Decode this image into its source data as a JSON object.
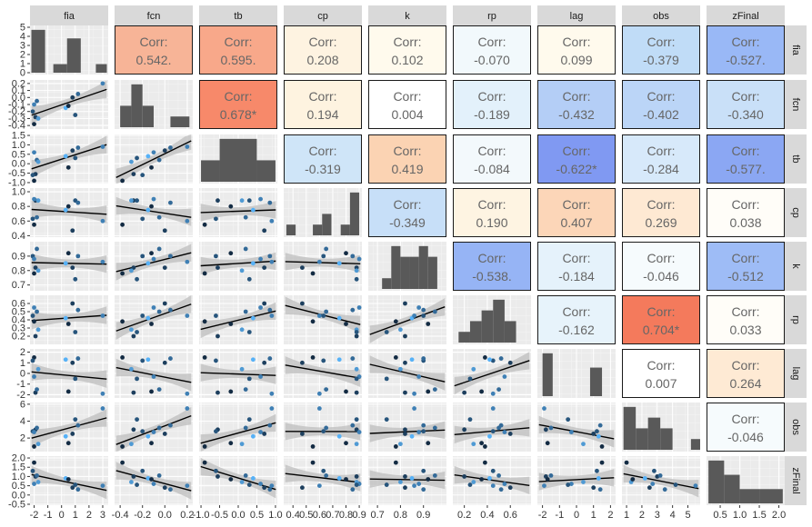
{
  "chart_data": {
    "type": "scatter",
    "kind": "pairs-matrix",
    "variables": [
      "fia",
      "fcn",
      "tb",
      "cp",
      "k",
      "rp",
      "lag",
      "obs",
      "zFinal"
    ],
    "corr_heading": "Corr:",
    "axes": {
      "fia": {
        "range": [
          -2.3,
          3.4
        ],
        "ticks": [
          "-2",
          "-1",
          "0",
          "1",
          "2",
          "3"
        ],
        "tick_values": [
          -2,
          -1,
          0,
          1,
          2,
          3
        ]
      },
      "fcn": {
        "range": [
          -0.45,
          0.25
        ],
        "ticks": [
          "-0.4",
          "-0.2",
          "0.0",
          "0.2"
        ],
        "tick_values": [
          -0.4,
          -0.2,
          0.0,
          0.2
        ]
      },
      "tb": {
        "range": [
          -1.05,
          1.05
        ],
        "ticks": [
          "-1.0",
          "-0.5",
          "0.0",
          "0.5",
          "1.0"
        ],
        "tick_values": [
          -1.0,
          -0.5,
          0.0,
          0.5,
          1.0
        ]
      },
      "cp": {
        "range": [
          0.33,
          0.92
        ],
        "ticks": [
          "0.4",
          "0.5",
          "0.6",
          "0.7",
          "0.8",
          "0.9"
        ],
        "tick_values": [
          0.4,
          0.5,
          0.6,
          0.7,
          0.8,
          0.9
        ]
      },
      "k": {
        "range": [
          0.66,
          1.0
        ],
        "ticks": [
          "0.7",
          "0.8",
          "0.9"
        ],
        "tick_values": [
          0.7,
          0.8,
          0.9
        ]
      },
      "rp": {
        "range": [
          0.1,
          0.78
        ],
        "ticks": [
          "0.2",
          "0.4",
          "0.6"
        ],
        "tick_values": [
          0.2,
          0.4,
          0.6
        ]
      },
      "lag": {
        "range": [
          -2.3,
          2.3
        ],
        "ticks": [
          "-2",
          "-1",
          "0",
          "1",
          "2"
        ],
        "tick_values": [
          -2,
          -1,
          0,
          1,
          2
        ]
      },
      "obs": {
        "range": [
          0.7,
          5.8
        ],
        "ticks": [
          "1",
          "2",
          "3",
          "4",
          "5"
        ],
        "tick_values": [
          1,
          2,
          3,
          4,
          5
        ]
      },
      "zFinal": {
        "range": [
          0.15,
          2.15
        ],
        "ticks": [
          "0.5",
          "1.0",
          "1.5",
          "2.0"
        ],
        "tick_values": [
          0.5,
          1.0,
          1.5,
          2.0
        ]
      }
    },
    "row_axes": {
      "fia": {
        "range": [
          -0.2,
          5.2
        ],
        "ticks": [
          "0",
          "1",
          "2",
          "3",
          "4",
          "5"
        ],
        "tick_values": [
          0,
          1,
          2,
          3,
          4,
          5
        ]
      },
      "fcn": {
        "range": [
          -0.45,
          0.25
        ],
        "ticks": [
          "-0.4",
          "-0.3",
          "-0.2",
          "-0.1",
          "0.0",
          "0.1",
          "0.2"
        ],
        "tick_values": [
          -0.4,
          -0.3,
          -0.2,
          -0.1,
          0.0,
          0.1,
          0.2
        ]
      },
      "tb": {
        "range": [
          -1.05,
          1.55
        ],
        "ticks": [
          "-1.0",
          "-0.5",
          "0.0",
          "0.5",
          "1.0",
          "1.5"
        ],
        "tick_values": [
          -1.0,
          -0.5,
          0.0,
          0.5,
          1.0,
          1.5
        ]
      },
      "cp": {
        "range": [
          0.38,
          1.05
        ],
        "ticks": [
          "0.4",
          "0.6",
          "0.8",
          "1.0"
        ],
        "tick_values": [
          0.4,
          0.6,
          0.8,
          1.0
        ]
      },
      "k": {
        "range": [
          0.66,
          1.0
        ],
        "ticks": [
          "0.7",
          "0.8",
          "0.9"
        ],
        "tick_values": [
          0.7,
          0.8,
          0.9
        ]
      },
      "rp": {
        "range": [
          0.1,
          0.7
        ],
        "ticks": [
          "0.2",
          "0.3",
          "0.4",
          "0.5",
          "0.6"
        ],
        "tick_values": [
          0.2,
          0.3,
          0.4,
          0.5,
          0.6
        ]
      },
      "lag": {
        "range": [
          -2.3,
          2.3
        ],
        "ticks": [
          "-2",
          "-1",
          "0",
          "1",
          "2"
        ],
        "tick_values": [
          -2,
          -1,
          0,
          1,
          2
        ]
      },
      "obs": {
        "range": [
          0.4,
          6.2
        ],
        "ticks": [
          "2",
          "4",
          "6"
        ],
        "tick_values": [
          2,
          4,
          6
        ]
      },
      "zFinal": {
        "range": [
          -0.55,
          2.1
        ],
        "ticks": [
          "-0.5",
          "0.0",
          "0.5",
          "1.0",
          "1.5",
          "2.0"
        ],
        "tick_values": [
          -0.5,
          0.0,
          0.5,
          1.0,
          1.5,
          2.0
        ]
      }
    },
    "correlations": [
      {
        "row": "fia",
        "col": "fcn",
        "value": "0.542.",
        "fill": "#f7b497"
      },
      {
        "row": "fia",
        "col": "tb",
        "value": "0.595.",
        "fill": "#f8a88a"
      },
      {
        "row": "fia",
        "col": "cp",
        "value": "0.208",
        "fill": "#fef3e1"
      },
      {
        "row": "fia",
        "col": "k",
        "value": "0.102",
        "fill": "#fffaed"
      },
      {
        "row": "fia",
        "col": "rp",
        "value": "-0.070",
        "fill": "#f2f9fc"
      },
      {
        "row": "fia",
        "col": "lag",
        "value": "0.099",
        "fill": "#fffaed"
      },
      {
        "row": "fia",
        "col": "obs",
        "value": "-0.379",
        "fill": "#c0dcf7"
      },
      {
        "row": "fia",
        "col": "zFinal",
        "value": "-0.527.",
        "fill": "#99b8f6"
      },
      {
        "row": "fcn",
        "col": "tb",
        "value": "0.678*",
        "fill": "#f7896a"
      },
      {
        "row": "fcn",
        "col": "cp",
        "value": "0.194",
        "fill": "#fef3e0"
      },
      {
        "row": "fcn",
        "col": "k",
        "value": "0.004",
        "fill": "#ffffff"
      },
      {
        "row": "fcn",
        "col": "rp",
        "value": "-0.189",
        "fill": "#e3f1fb"
      },
      {
        "row": "fcn",
        "col": "lag",
        "value": "-0.432",
        "fill": "#b4cef6"
      },
      {
        "row": "fcn",
        "col": "obs",
        "value": "-0.402",
        "fill": "#bbd5f7"
      },
      {
        "row": "fcn",
        "col": "zFinal",
        "value": "-0.340",
        "fill": "#c9e0f8"
      },
      {
        "row": "tb",
        "col": "cp",
        "value": "-0.319",
        "fill": "#cfe5f8"
      },
      {
        "row": "tb",
        "col": "k",
        "value": "0.419",
        "fill": "#fbd3b3"
      },
      {
        "row": "tb",
        "col": "rp",
        "value": "-0.084",
        "fill": "#f3f9fc"
      },
      {
        "row": "tb",
        "col": "lag",
        "value": "-0.622*",
        "fill": "#8099f2"
      },
      {
        "row": "tb",
        "col": "obs",
        "value": "-0.284",
        "fill": "#d7e9fa"
      },
      {
        "row": "tb",
        "col": "zFinal",
        "value": "-0.577.",
        "fill": "#8ba7f3"
      },
      {
        "row": "cp",
        "col": "k",
        "value": "-0.349",
        "fill": "#c7dff8"
      },
      {
        "row": "cp",
        "col": "rp",
        "value": "0.190",
        "fill": "#fef4e2"
      },
      {
        "row": "cp",
        "col": "lag",
        "value": "0.407",
        "fill": "#fcd6b8"
      },
      {
        "row": "cp",
        "col": "obs",
        "value": "0.269",
        "fill": "#fee9d3"
      },
      {
        "row": "cp",
        "col": "zFinal",
        "value": "0.038",
        "fill": "#fffdf8"
      },
      {
        "row": "k",
        "col": "rp",
        "value": "-0.538.",
        "fill": "#96b4f5"
      },
      {
        "row": "k",
        "col": "lag",
        "value": "-0.184",
        "fill": "#e5f2fb"
      },
      {
        "row": "k",
        "col": "obs",
        "value": "-0.046",
        "fill": "#f6fbfd"
      },
      {
        "row": "k",
        "col": "zFinal",
        "value": "-0.512",
        "fill": "#9ebcf6"
      },
      {
        "row": "rp",
        "col": "lag",
        "value": "-0.162",
        "fill": "#e7f3fb"
      },
      {
        "row": "rp",
        "col": "obs",
        "value": "0.704*",
        "fill": "#f47a5c"
      },
      {
        "row": "rp",
        "col": "zFinal",
        "value": "0.033",
        "fill": "#fffdf8"
      },
      {
        "row": "lag",
        "col": "obs",
        "value": "0.007",
        "fill": "#ffffff"
      },
      {
        "row": "lag",
        "col": "zFinal",
        "value": "0.264",
        "fill": "#feead4"
      },
      {
        "row": "obs",
        "col": "zFinal",
        "value": "-0.046",
        "fill": "#f6fbfd"
      }
    ],
    "histograms": {
      "fia": [
        {
          "lo": -2.2,
          "hi": -1.2,
          "count": 5
        },
        {
          "lo": -0.6,
          "hi": 0.4,
          "count": 1
        },
        {
          "lo": 0.4,
          "hi": 1.4,
          "count": 4
        },
        {
          "lo": 2.5,
          "hi": 3.3,
          "count": 1
        }
      ],
      "fcn": [
        {
          "lo": -0.4,
          "hi": -0.3,
          "count": 2
        },
        {
          "lo": -0.3,
          "hi": -0.2,
          "count": 4
        },
        {
          "lo": -0.2,
          "hi": -0.1,
          "count": 2
        },
        {
          "lo": 0.05,
          "hi": 0.22,
          "count": 1
        }
      ],
      "tb": [
        {
          "lo": -1.0,
          "hi": -0.5,
          "count": 1
        },
        {
          "lo": -0.5,
          "hi": 0.5,
          "count": 2
        },
        {
          "lo": 0.5,
          "hi": 1.0,
          "count": 1
        }
      ],
      "cp": [
        {
          "lo": 0.35,
          "hi": 0.42,
          "count": 1
        },
        {
          "lo": 0.55,
          "hi": 0.62,
          "count": 1
        },
        {
          "lo": 0.62,
          "hi": 0.69,
          "count": 2
        },
        {
          "lo": 0.76,
          "hi": 0.83,
          "count": 1
        },
        {
          "lo": 0.83,
          "hi": 0.9,
          "count": 4
        }
      ],
      "k": [
        {
          "lo": 0.72,
          "hi": 0.76,
          "count": 1
        },
        {
          "lo": 0.76,
          "hi": 0.8,
          "count": 4
        },
        {
          "lo": 0.8,
          "hi": 0.84,
          "count": 3
        },
        {
          "lo": 0.84,
          "hi": 0.88,
          "count": 3
        },
        {
          "lo": 0.88,
          "hi": 0.92,
          "count": 4
        },
        {
          "lo": 0.92,
          "hi": 0.96,
          "count": 3
        }
      ],
      "rp": [
        {
          "lo": 0.15,
          "hi": 0.25,
          "count": 1
        },
        {
          "lo": 0.25,
          "hi": 0.35,
          "count": 2
        },
        {
          "lo": 0.35,
          "hi": 0.45,
          "count": 3
        },
        {
          "lo": 0.45,
          "hi": 0.55,
          "count": 4
        },
        {
          "lo": 0.55,
          "hi": 0.65,
          "count": 2
        }
      ],
      "lag": [
        {
          "lo": -2.0,
          "hi": -1.4,
          "count": 3
        },
        {
          "lo": 0.8,
          "hi": 1.5,
          "count": 2
        }
      ],
      "obs": [
        {
          "lo": 0.8,
          "hi": 1.6,
          "count": 4
        },
        {
          "lo": 1.6,
          "hi": 2.4,
          "count": 2
        },
        {
          "lo": 2.4,
          "hi": 3.2,
          "count": 3
        },
        {
          "lo": 3.2,
          "hi": 4.0,
          "count": 2
        },
        {
          "lo": 5.2,
          "hi": 5.8,
          "count": 1
        }
      ],
      "zFinal": [
        {
          "lo": 0.2,
          "hi": 0.6,
          "count": 3
        },
        {
          "lo": 0.6,
          "hi": 1.0,
          "count": 2
        },
        {
          "lo": 1.0,
          "hi": 1.5,
          "count": 1
        },
        {
          "lo": 1.5,
          "hi": 2.1,
          "count": 1
        }
      ]
    },
    "observations": [
      {
        "fia": -2.0,
        "fcn": -0.38,
        "tb": -0.9,
        "cp": 0.55,
        "k": 0.78,
        "rp": 0.38,
        "lag": 1.5,
        "obs": 1.0,
        "zFinal": 1.75
      },
      {
        "fia": -1.9,
        "fcn": -0.28,
        "tb": -0.55,
        "cp": 0.88,
        "k": 0.82,
        "rp": 0.2,
        "lag": -1.8,
        "obs": 3.0,
        "zFinal": 1.0
      },
      {
        "fia": -2.1,
        "fcn": -0.2,
        "tb": -0.6,
        "cp": 0.63,
        "k": 0.9,
        "rp": 0.45,
        "lag": 1.2,
        "obs": 2.8,
        "zFinal": 1.3
      },
      {
        "fia": -1.8,
        "fcn": -0.05,
        "tb": 0.2,
        "cp": 0.65,
        "k": 0.95,
        "rp": 0.5,
        "lag": -1.5,
        "obs": 3.2,
        "zFinal": 1.05
      },
      {
        "fia": -2.0,
        "fcn": -0.1,
        "tb": 0.6,
        "cp": 0.9,
        "k": 0.88,
        "rp": 0.55,
        "lag": -0.3,
        "obs": 2.7,
        "zFinal": 0.6
      },
      {
        "fia": -1.7,
        "fcn": -0.3,
        "tb": 0.1,
        "cp": 0.88,
        "k": 0.8,
        "rp": 0.28,
        "lag": 0.4,
        "obs": 1.3,
        "zFinal": 0.7
      },
      {
        "fia": 0.3,
        "fcn": -0.15,
        "tb": 0.4,
        "cp": 0.75,
        "k": 0.85,
        "rp": 0.42,
        "lag": 1.3,
        "obs": 2.2,
        "zFinal": 0.9
      },
      {
        "fia": 0.5,
        "fcn": -0.12,
        "tb": -0.2,
        "cp": 0.8,
        "k": 0.92,
        "rp": 0.35,
        "lag": -1.7,
        "obs": 1.4,
        "zFinal": 0.85
      },
      {
        "fia": 0.8,
        "fcn": 0.0,
        "tb": 0.7,
        "cp": 0.47,
        "k": 0.82,
        "rp": 0.6,
        "lag": 1.0,
        "obs": 2.5,
        "zFinal": 0.4
      },
      {
        "fia": 1.0,
        "fcn": -0.25,
        "tb": 0.3,
        "cp": 0.88,
        "k": 0.74,
        "rp": 0.25,
        "lag": -0.5,
        "obs": 4.2,
        "zFinal": 0.55
      },
      {
        "fia": 1.2,
        "fcn": 0.05,
        "tb": 0.85,
        "cp": 0.85,
        "k": 0.9,
        "rp": 0.52,
        "lag": 1.4,
        "obs": 3.5,
        "zFinal": 0.3
      },
      {
        "fia": 3.0,
        "fcn": 0.2,
        "tb": 0.9,
        "cp": 0.6,
        "k": 0.86,
        "rp": 0.45,
        "lag": -1.9,
        "obs": 5.5,
        "zFinal": 0.5
      }
    ]
  }
}
